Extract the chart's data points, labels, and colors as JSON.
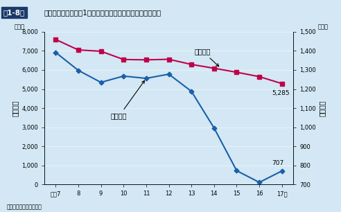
{
  "x_labels": [
    "平成7",
    "8",
    "9",
    "10",
    "11",
    "12",
    "13",
    "14",
    "15",
    "16",
    "17年"
  ],
  "x_values": [
    7,
    8,
    9,
    10,
    11,
    12,
    13,
    14,
    15,
    16,
    17
  ],
  "nashi_values": [
    7600,
    7050,
    6980,
    6550,
    6530,
    6560,
    6290,
    6090,
    5880,
    5650,
    5285
  ],
  "ari_values": [
    6920,
    5980,
    5350,
    5680,
    5560,
    5780,
    4880,
    2960,
    720,
    110,
    707
  ],
  "nashi_color": "#c0004a",
  "ari_color": "#1a5fa8",
  "bg_color": "#d3e8f4",
  "ylim_left": [
    0,
    8000
  ],
  "ylim_right": [
    700,
    1500
  ],
  "yticks_left": [
    0,
    1000,
    2000,
    3000,
    4000,
    5000,
    6000,
    7000,
    8000
  ],
  "yticks_right": [
    700,
    800,
    900,
    1000,
    1100,
    1200,
    1300,
    1400,
    1500
  ],
  "ylabel_left": "飲酒なし",
  "ylabel_right": "飲酒あり",
  "yunit_left": "（件）",
  "yunit_right": "（件）",
  "label_nashi": "飲酒なし",
  "label_ari": "飲酒あり",
  "annotation_5285": "5,285",
  "annotation_707": "707",
  "title_box": "ㅔ1-8図",
  "title_main": "原付以上運転者（ㅔ1当事者）の飲酒別死亡事故件数の推移",
  "note": "注　警察庁資料による。"
}
